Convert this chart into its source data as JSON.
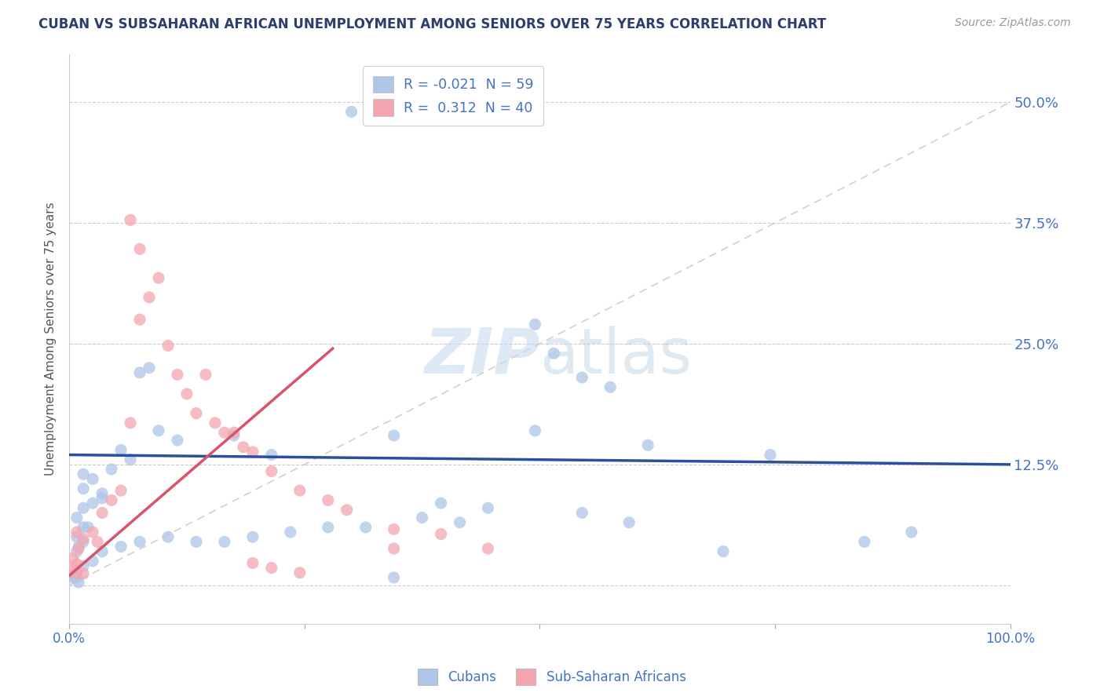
{
  "title": "CUBAN VS SUBSAHARAN AFRICAN UNEMPLOYMENT AMONG SENIORS OVER 75 YEARS CORRELATION CHART",
  "source": "Source: ZipAtlas.com",
  "ylabel": "Unemployment Among Seniors over 75 years",
  "xlim": [
    0,
    1.0
  ],
  "ylim": [
    -0.04,
    0.55
  ],
  "xticks": [
    0.0,
    0.25,
    0.5,
    0.75,
    1.0
  ],
  "xtick_labels": [
    "0.0%",
    "",
    "",
    "",
    "100.0%"
  ],
  "ytick_labels": [
    "",
    "12.5%",
    "25.0%",
    "37.5%",
    "50.0%"
  ],
  "yticks": [
    0.0,
    0.125,
    0.25,
    0.375,
    0.5
  ],
  "background_color": "#ffffff",
  "title_color": "#2c3e6b",
  "axis_color": "#4472c4",
  "watermark": "ZIPatlas",
  "legend_R_cubans": "-0.021",
  "legend_N_cubans": "59",
  "legend_R_subsaharan": "0.312",
  "legend_N_subsaharan": "40",
  "cubans_color": "#aec6e8",
  "subsaharan_color": "#f4a6b0",
  "cubans_line_color": "#2a4f9e",
  "subsaharan_line_color": "#d9536a",
  "diagonal_line_color": "#cccccc",
  "cubans_line": [
    0.0,
    0.135,
    1.0,
    0.125
  ],
  "subsaharan_line": [
    0.0,
    0.01,
    0.28,
    0.245
  ],
  "cubans_scatter": [
    [
      0.3,
      0.49
    ],
    [
      0.015,
      0.115
    ],
    [
      0.035,
      0.09
    ],
    [
      0.015,
      0.08
    ],
    [
      0.025,
      0.11
    ],
    [
      0.008,
      0.07
    ],
    [
      0.015,
      0.06
    ],
    [
      0.025,
      0.085
    ],
    [
      0.035,
      0.095
    ],
    [
      0.015,
      0.1
    ],
    [
      0.008,
      0.05
    ],
    [
      0.01,
      0.04
    ],
    [
      0.015,
      0.045
    ],
    [
      0.008,
      0.035
    ],
    [
      0.02,
      0.06
    ],
    [
      0.045,
      0.12
    ],
    [
      0.065,
      0.13
    ],
    [
      0.075,
      0.22
    ],
    [
      0.085,
      0.225
    ],
    [
      0.055,
      0.14
    ],
    [
      0.095,
      0.16
    ],
    [
      0.115,
      0.15
    ],
    [
      0.175,
      0.155
    ],
    [
      0.215,
      0.135
    ],
    [
      0.345,
      0.155
    ],
    [
      0.495,
      0.27
    ],
    [
      0.515,
      0.24
    ],
    [
      0.545,
      0.215
    ],
    [
      0.575,
      0.205
    ],
    [
      0.615,
      0.145
    ],
    [
      0.745,
      0.135
    ],
    [
      0.495,
      0.16
    ],
    [
      0.545,
      0.075
    ],
    [
      0.445,
      0.08
    ],
    [
      0.395,
      0.085
    ],
    [
      0.375,
      0.07
    ],
    [
      0.415,
      0.065
    ],
    [
      0.315,
      0.06
    ],
    [
      0.275,
      0.06
    ],
    [
      0.235,
      0.055
    ],
    [
      0.195,
      0.05
    ],
    [
      0.165,
      0.045
    ],
    [
      0.135,
      0.045
    ],
    [
      0.105,
      0.05
    ],
    [
      0.075,
      0.045
    ],
    [
      0.055,
      0.04
    ],
    [
      0.035,
      0.035
    ],
    [
      0.025,
      0.025
    ],
    [
      0.015,
      0.02
    ],
    [
      0.008,
      0.015
    ],
    [
      0.004,
      0.01
    ],
    [
      0.004,
      0.008
    ],
    [
      0.008,
      0.008
    ],
    [
      0.01,
      0.003
    ],
    [
      0.345,
      0.008
    ],
    [
      0.595,
      0.065
    ],
    [
      0.695,
      0.035
    ],
    [
      0.845,
      0.045
    ],
    [
      0.895,
      0.055
    ]
  ],
  "subsaharan_scatter": [
    [
      0.008,
      0.055
    ],
    [
      0.015,
      0.048
    ],
    [
      0.01,
      0.038
    ],
    [
      0.004,
      0.028
    ],
    [
      0.008,
      0.022
    ],
    [
      0.004,
      0.018
    ],
    [
      0.008,
      0.012
    ],
    [
      0.015,
      0.012
    ],
    [
      0.025,
      0.055
    ],
    [
      0.03,
      0.045
    ],
    [
      0.035,
      0.075
    ],
    [
      0.045,
      0.088
    ],
    [
      0.055,
      0.098
    ],
    [
      0.065,
      0.168
    ],
    [
      0.075,
      0.275
    ],
    [
      0.085,
      0.298
    ],
    [
      0.095,
      0.318
    ],
    [
      0.075,
      0.348
    ],
    [
      0.065,
      0.378
    ],
    [
      0.105,
      0.248
    ],
    [
      0.115,
      0.218
    ],
    [
      0.125,
      0.198
    ],
    [
      0.135,
      0.178
    ],
    [
      0.145,
      0.218
    ],
    [
      0.155,
      0.168
    ],
    [
      0.165,
      0.158
    ],
    [
      0.175,
      0.158
    ],
    [
      0.185,
      0.143
    ],
    [
      0.195,
      0.138
    ],
    [
      0.215,
      0.118
    ],
    [
      0.245,
      0.098
    ],
    [
      0.275,
      0.088
    ],
    [
      0.295,
      0.078
    ],
    [
      0.345,
      0.058
    ],
    [
      0.395,
      0.053
    ],
    [
      0.445,
      0.038
    ],
    [
      0.345,
      0.038
    ],
    [
      0.195,
      0.023
    ],
    [
      0.215,
      0.018
    ],
    [
      0.245,
      0.013
    ]
  ]
}
